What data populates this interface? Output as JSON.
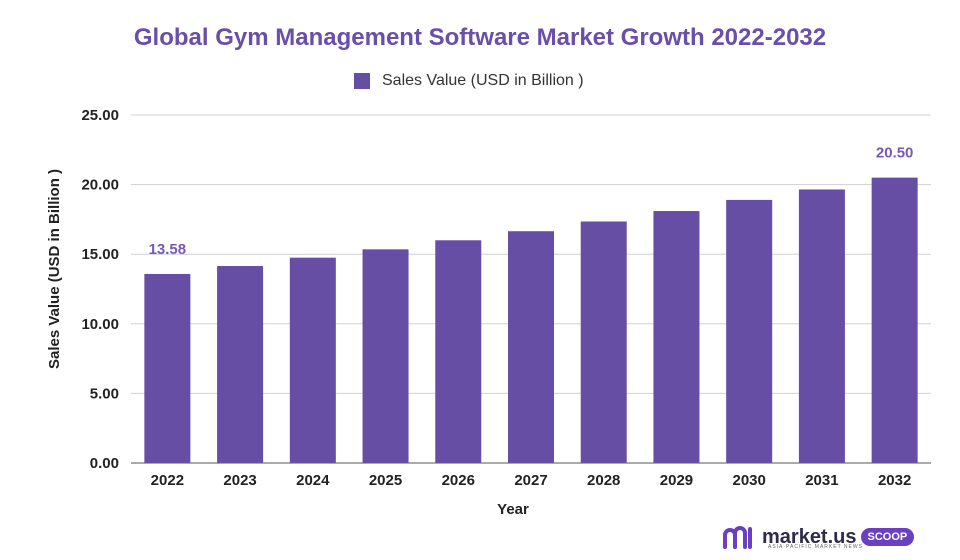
{
  "chart_data": {
    "type": "bar",
    "title": "Global Gym Management Software Market Growth 2022-2032",
    "xlabel": "Year",
    "ylabel": "Sales Value (USD in Billion )",
    "ylim": [
      0,
      25
    ],
    "yticks": [
      "0.00",
      "5.00",
      "10.00",
      "15.00",
      "20.00",
      "25.00"
    ],
    "grid": true,
    "legend_position": "top-center",
    "categories": [
      "2022",
      "2023",
      "2024",
      "2025",
      "2026",
      "2027",
      "2028",
      "2029",
      "2030",
      "2031",
      "2032"
    ],
    "series": [
      {
        "name": "Sales Value (USD in Billion )",
        "color": "#654ea3",
        "values": [
          13.58,
          14.15,
          14.75,
          15.35,
          16.0,
          16.65,
          17.35,
          18.1,
          18.9,
          19.65,
          20.5
        ]
      }
    ],
    "data_labels": [
      {
        "category": "2022",
        "text": "13.58"
      },
      {
        "category": "2032",
        "text": "20.50"
      }
    ]
  },
  "brand": {
    "name": "market.us",
    "tagline": "ASIA-PACIFIC MARKET NEWS",
    "badge": "SCOOP"
  },
  "colors": {
    "bar": "#654ea3",
    "title": "#6a4fa8",
    "grid": "#d0d0d0"
  }
}
